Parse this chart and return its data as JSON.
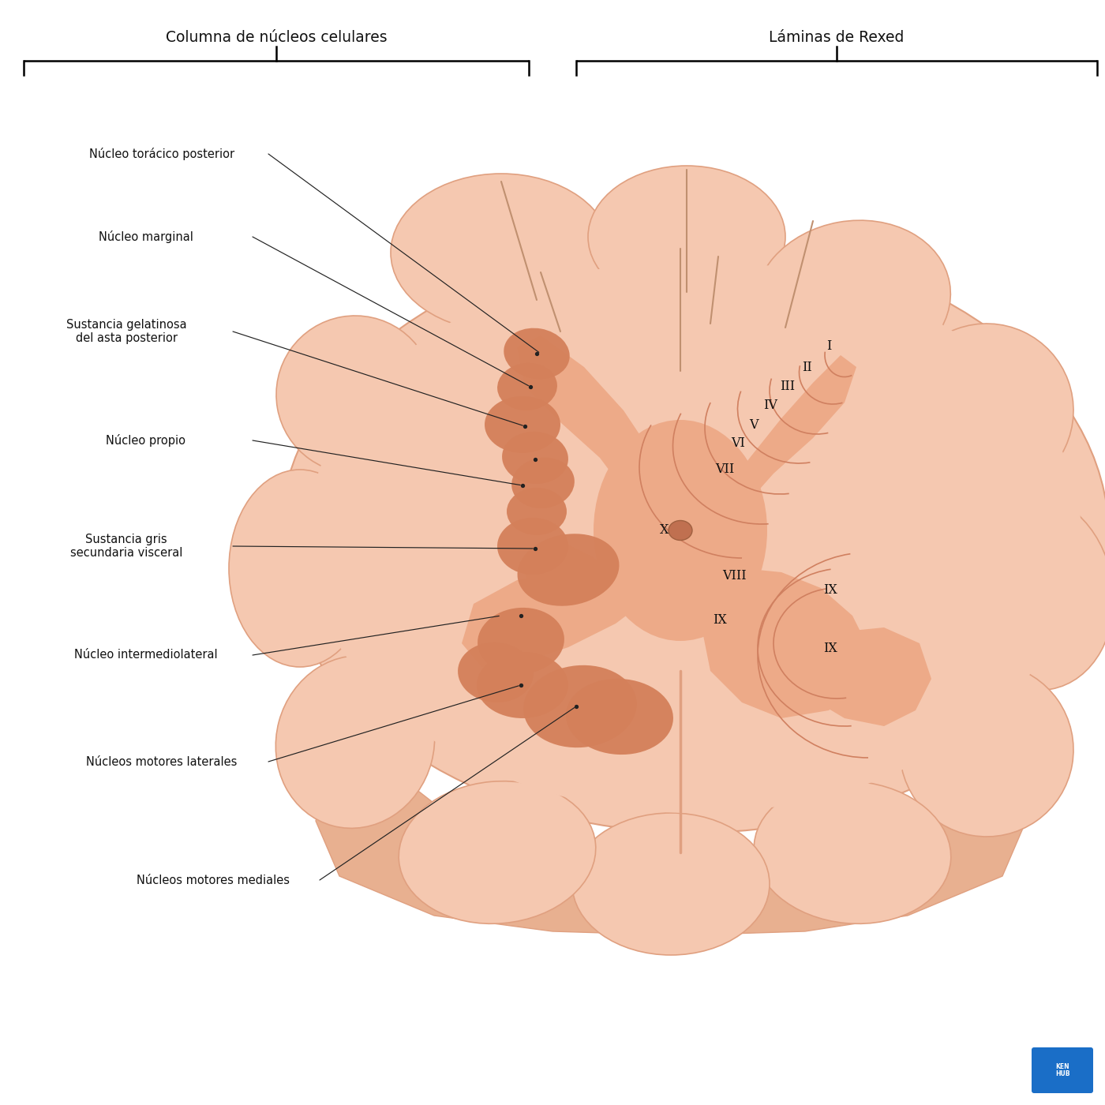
{
  "background_color": "#ffffff",
  "header_left": "Columna de núcleos celulares",
  "header_right": "Láminas de Rexed",
  "label_color": "#111111",
  "wm_light": "#f5c8b0",
  "wm_edge": "#e0a080",
  "gm_color": "#edaa88",
  "gm_edge": "#d89070",
  "nucleus_color": "#d4805a",
  "nucleus_edge": "#c07050",
  "canal_color": "#c07050",
  "lamina_line_color": "#d08060",
  "groove_color": "#c09070",
  "bottom_side_color": "#e8b090",
  "kenhub_blue": "#1a6ec7",
  "kenhub_text": "#ffffff",
  "arrow_color": "#222222",
  "label_specs": [
    [
      "Núcleo torácico posterior",
      2.05,
      12.05,
      6.85,
      9.52
    ],
    [
      "Núcleo marginal",
      1.85,
      11.0,
      6.72,
      9.1
    ],
    [
      "Sustancia gelatinosa\ndel asta posterior",
      1.6,
      9.8,
      6.65,
      8.6
    ],
    [
      "Núcleo propio",
      1.85,
      8.42,
      6.62,
      7.85
    ],
    [
      "Sustancia gris\nsecundaria visceral",
      1.6,
      7.08,
      6.78,
      7.05
    ],
    [
      "Núcleo intermediolateral",
      1.85,
      5.7,
      6.35,
      6.2
    ],
    [
      "Núcleos motores laterales",
      2.05,
      4.35,
      6.6,
      5.32
    ],
    [
      "Núcleos motores mediales",
      2.7,
      2.85,
      7.3,
      5.05
    ]
  ],
  "rexed_specs": [
    [
      "I",
      10.5,
      9.62
    ],
    [
      "II",
      10.22,
      9.35
    ],
    [
      "III",
      9.98,
      9.1
    ],
    [
      "IV",
      9.76,
      8.86
    ],
    [
      "V",
      9.55,
      8.62
    ],
    [
      "VI",
      9.35,
      8.38
    ],
    [
      "VII",
      9.18,
      8.05
    ],
    [
      "VIII",
      9.3,
      6.7
    ],
    [
      "IX",
      9.12,
      6.15
    ],
    [
      "IX",
      10.52,
      6.52
    ],
    [
      "IX",
      10.52,
      5.78
    ],
    [
      "X",
      8.42,
      7.28
    ]
  ]
}
